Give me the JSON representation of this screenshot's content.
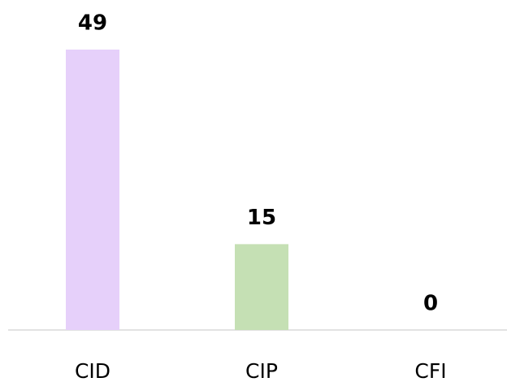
{
  "chart_data": {
    "type": "bar",
    "categories": [
      "CID",
      "CIP",
      "CFI"
    ],
    "values": [
      49,
      15,
      0
    ],
    "colors": [
      "#e6d0fa",
      "#c5e0b4",
      "#f4b183"
    ],
    "ylim": [
      0,
      49
    ]
  }
}
